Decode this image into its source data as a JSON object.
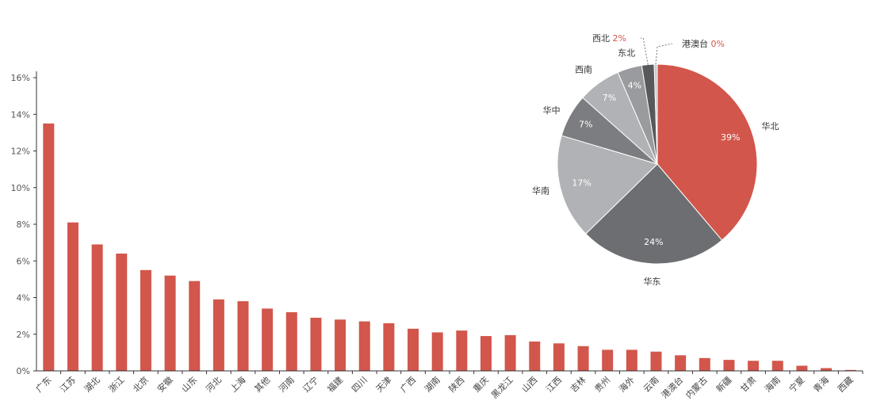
{
  "colors": {
    "bar": "#D2564B",
    "axis": "#333333",
    "pie_red": "#D2564B",
    "pie_dark": "#6D6E71",
    "pie_light": "#B1B2B5",
    "pie_mid": "#7C7D80",
    "pie_mid2": "#9A9B9E",
    "pie_darkest": "#58595B",
    "pie_tiny": "#C9CACC"
  },
  "chart_data": [
    {
      "type": "bar",
      "title": "",
      "xlabel": "",
      "ylabel": "",
      "ylim": [
        0,
        16
      ],
      "yticks": [
        "0%",
        "2%",
        "4%",
        "6%",
        "8%",
        "10%",
        "12%",
        "14%",
        "16%"
      ],
      "grid": false,
      "categories": [
        "广东",
        "江苏",
        "湖北",
        "浙江",
        "北京",
        "安徽",
        "山东",
        "河北",
        "上海",
        "其他",
        "河南",
        "辽宁",
        "福建",
        "四川",
        "天津",
        "广西",
        "湖南",
        "陕西",
        "重庆",
        "黑龙江",
        "山西",
        "江西",
        "吉林",
        "贵州",
        "海外",
        "云南",
        "港澳台",
        "内蒙古",
        "新疆",
        "甘肃",
        "海南",
        "宁夏",
        "青海",
        "西藏"
      ],
      "values": [
        13.5,
        8.1,
        6.9,
        6.4,
        5.5,
        5.2,
        4.9,
        3.9,
        3.8,
        3.4,
        3.2,
        2.9,
        2.8,
        2.7,
        2.6,
        2.3,
        2.1,
        2.2,
        1.9,
        1.95,
        1.6,
        1.5,
        1.35,
        1.15,
        1.15,
        1.05,
        0.85,
        0.7,
        0.6,
        0.55,
        0.55,
        0.28,
        0.15,
        0.05
      ]
    },
    {
      "type": "pie",
      "title": "",
      "slices": [
        {
          "label": "华北",
          "value": 39,
          "pct_label": "39%",
          "color_key": "pie_red",
          "label_pos": "outside",
          "pct_pos": "inside"
        },
        {
          "label": "华东",
          "value": 24,
          "pct_label": "24%",
          "color_key": "pie_dark",
          "label_pos": "outside",
          "pct_pos": "inside"
        },
        {
          "label": "华南",
          "value": 17,
          "pct_label": "17%",
          "color_key": "pie_light",
          "label_pos": "outside",
          "pct_pos": "inside"
        },
        {
          "label": "华中",
          "value": 7,
          "pct_label": "7%",
          "color_key": "pie_mid",
          "label_pos": "outside",
          "pct_pos": "inside"
        },
        {
          "label": "西南",
          "value": 7,
          "pct_label": "7%",
          "color_key": "pie_light",
          "label_pos": "outside",
          "pct_pos": "inside"
        },
        {
          "label": "东北",
          "value": 4,
          "pct_label": "4%",
          "color_key": "pie_mid2",
          "label_pos": "outside",
          "pct_pos": "inside"
        },
        {
          "label": "西北",
          "value": 2,
          "pct_label": "2%",
          "color_key": "pie_darkest",
          "label_pos": "callout",
          "pct_pos": "callout"
        },
        {
          "label": "港澳台",
          "value": 0.5,
          "pct_label": "0%",
          "color_key": "pie_tiny",
          "label_pos": "callout",
          "pct_pos": "callout"
        }
      ]
    }
  ]
}
